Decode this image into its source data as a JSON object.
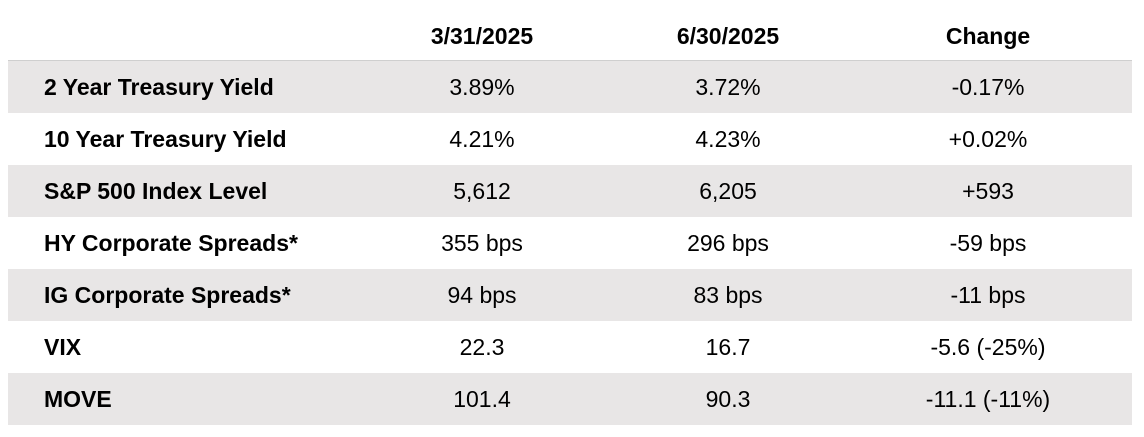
{
  "headers": {
    "label": "",
    "q1": "3/31/2025",
    "q2": "6/30/2025",
    "change": "Change"
  },
  "rows": [
    {
      "label": "2 Year Treasury Yield",
      "q1": "3.89%",
      "q2": "3.72%",
      "change": "-0.17%"
    },
    {
      "label": "10 Year Treasury Yield",
      "q1": "4.21%",
      "q2": "4.23%",
      "change": "+0.02%"
    },
    {
      "label": "S&P 500 Index Level",
      "q1": "5,612",
      "q2": "6,205",
      "change": "+593"
    },
    {
      "label": "HY Corporate Spreads*",
      "q1": "355 bps",
      "q2": "296 bps",
      "change": "-59 bps"
    },
    {
      "label": "IG Corporate Spreads*",
      "q1": "94 bps",
      "q2": "83 bps",
      "change": "-11 bps"
    },
    {
      "label": "VIX",
      "q1": "22.3",
      "q2": "16.7",
      "change": "-5.6 (-25%)"
    },
    {
      "label": "MOVE",
      "q1": "101.4",
      "q2": "90.3",
      "change": "-11.1 (-11%)"
    }
  ],
  "colors": {
    "row_shading": "#e8e6e6",
    "text": "#000000"
  }
}
